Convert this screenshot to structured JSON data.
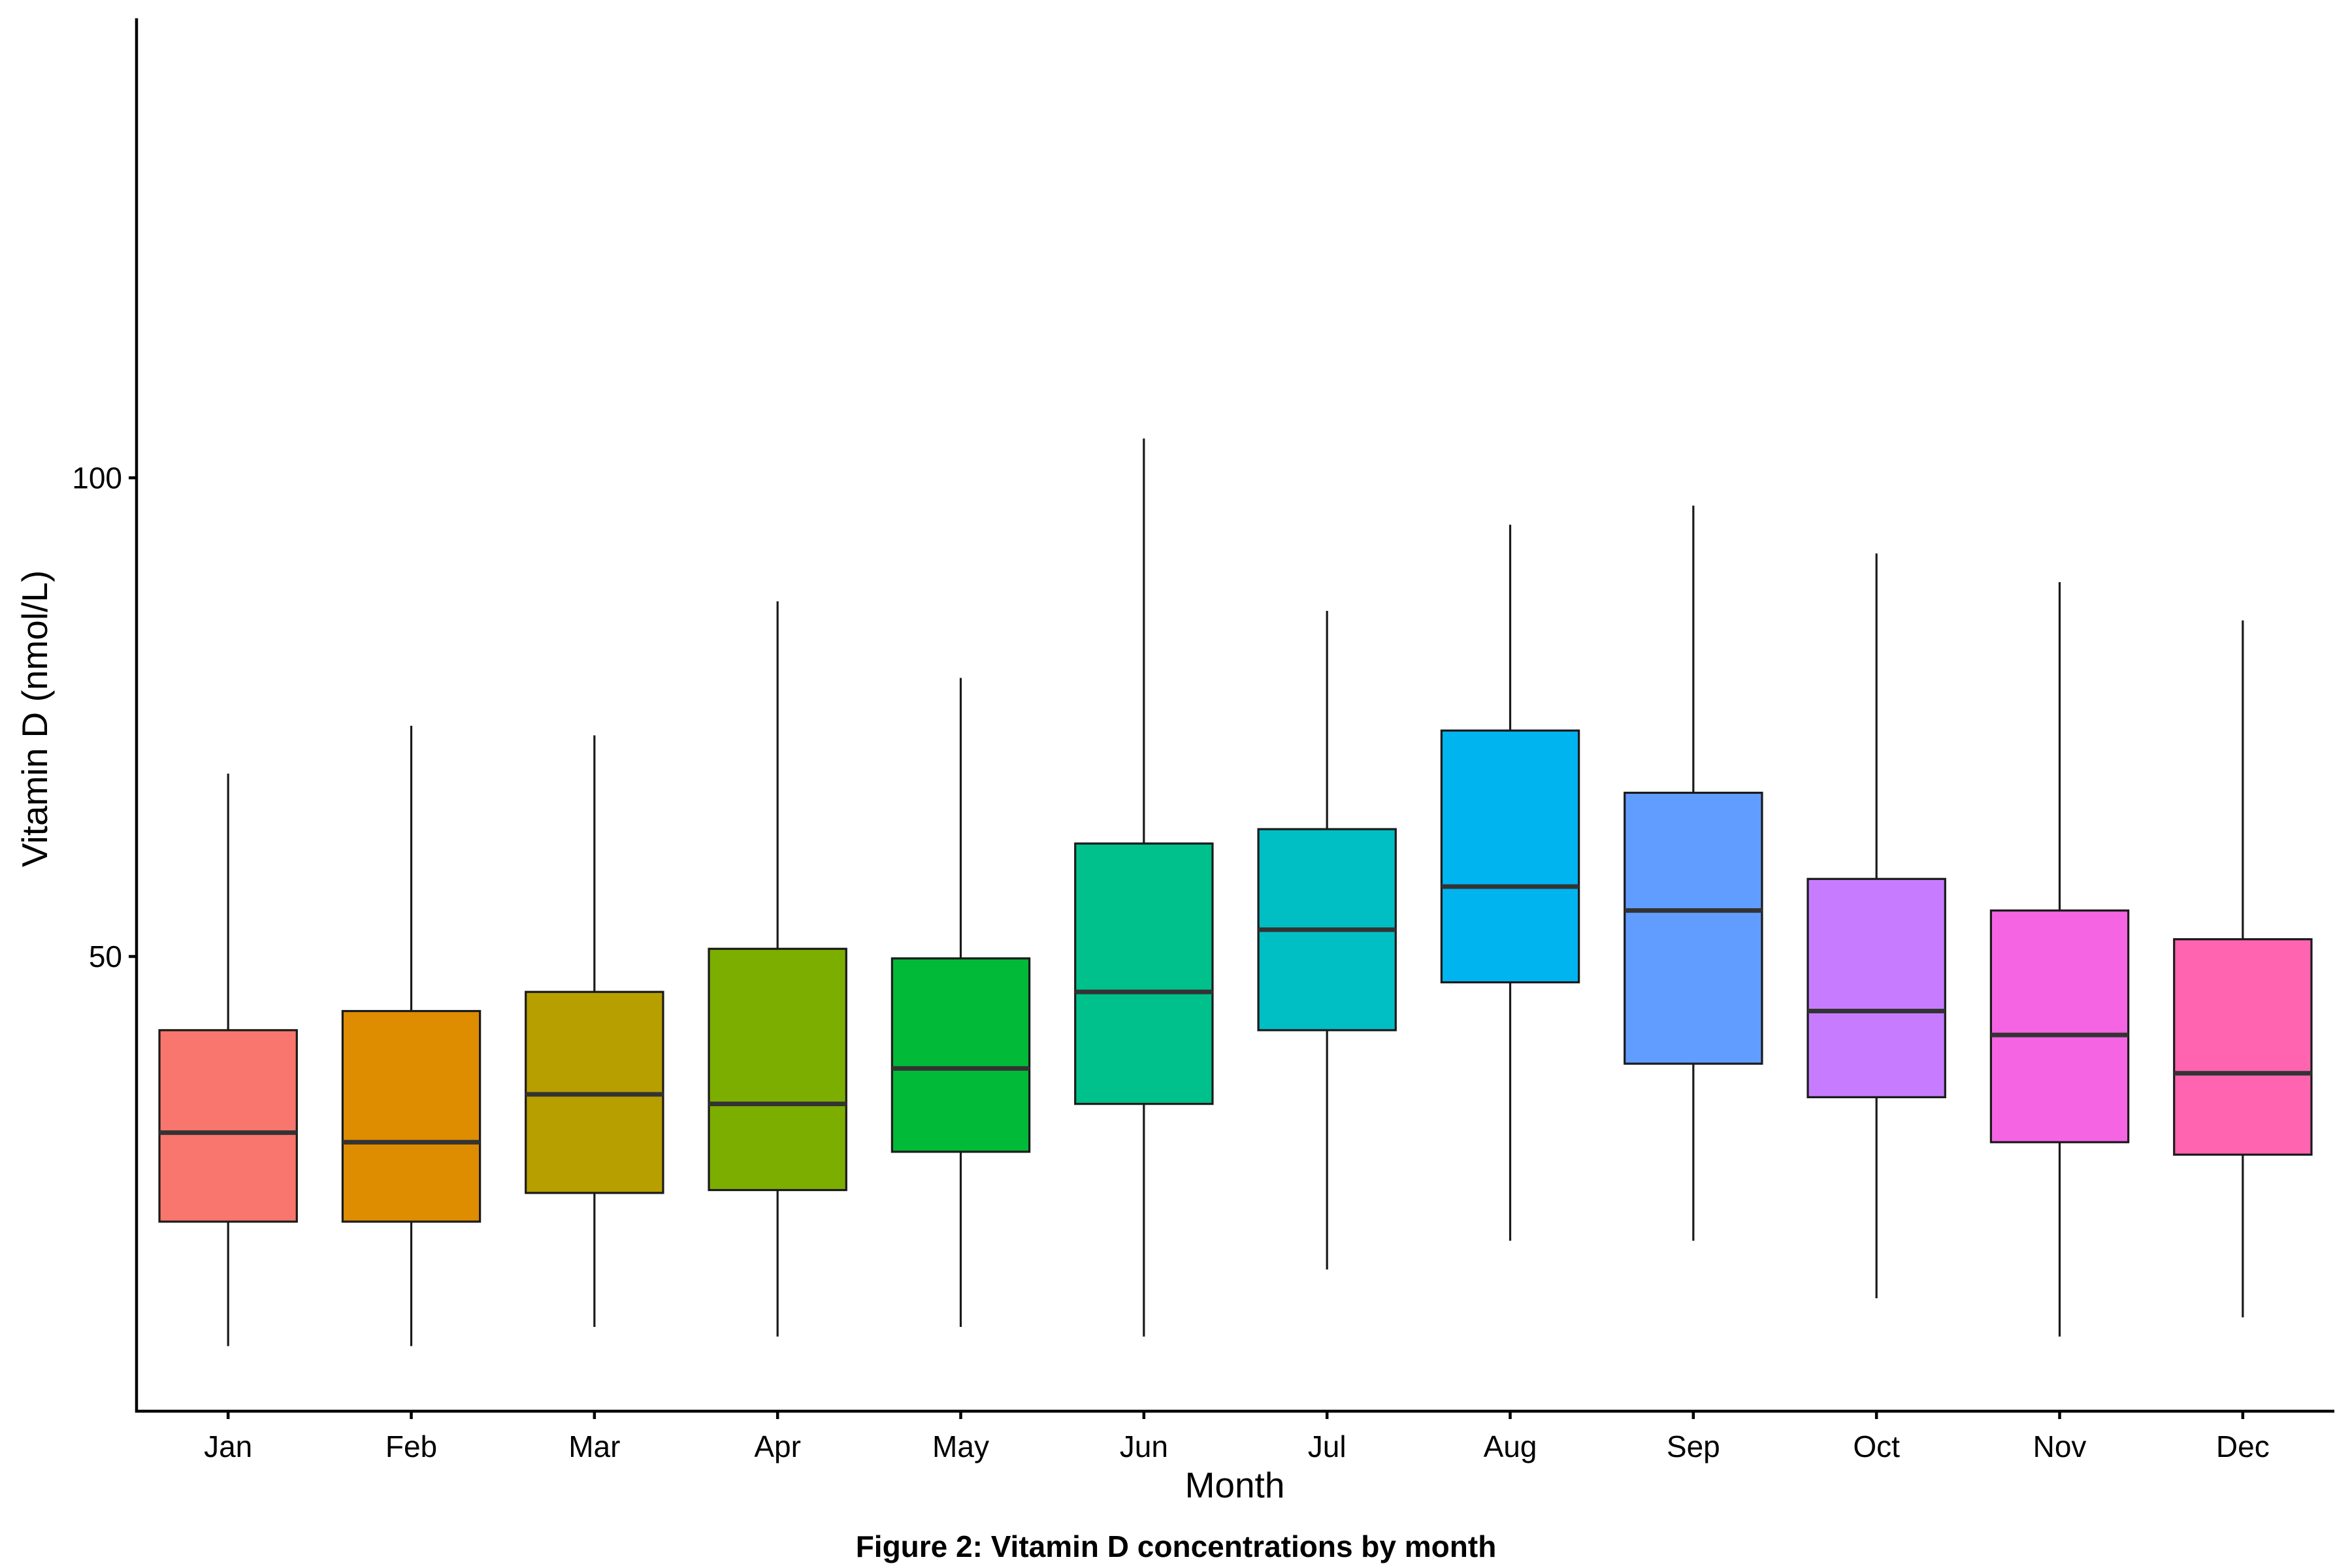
{
  "chart_data": {
    "type": "box",
    "caption": "Figure 2: Vitamin D concentrations by month",
    "xlabel": "Month",
    "ylabel": "Vitamin D (nmol/L)",
    "ylim": [
      2.5,
      148
    ],
    "yticks": [
      50,
      100
    ],
    "grid": false,
    "legend": "none",
    "categories": [
      "Jan",
      "Feb",
      "Mar",
      "Apr",
      "May",
      "Jun",
      "Jul",
      "Aug",
      "Sep",
      "Oct",
      "Nov",
      "Dec"
    ],
    "boxes": [
      {
        "month": "Jan",
        "whisker_low": 9.3,
        "q1": 22.3,
        "median": 31.6,
        "q3": 42.3,
        "whisker_high": 69.1,
        "color": "#F8766D"
      },
      {
        "month": "Feb",
        "whisker_low": 9.3,
        "q1": 22.3,
        "median": 30.6,
        "q3": 44.3,
        "whisker_high": 74.1,
        "color": "#DE8C00"
      },
      {
        "month": "Mar",
        "whisker_low": 11.3,
        "q1": 25.3,
        "median": 35.6,
        "q3": 46.3,
        "whisker_high": 73.1,
        "color": "#B79F00"
      },
      {
        "month": "Apr",
        "whisker_low": 10.3,
        "q1": 25.6,
        "median": 34.6,
        "q3": 50.8,
        "whisker_high": 87.1,
        "color": "#7CAE00"
      },
      {
        "month": "May",
        "whisker_low": 11.3,
        "q1": 29.6,
        "median": 38.3,
        "q3": 49.8,
        "whisker_high": 79.1,
        "color": "#00BA38"
      },
      {
        "month": "Jun",
        "whisker_low": 10.3,
        "q1": 34.6,
        "median": 46.3,
        "q3": 61.8,
        "whisker_high": 104.1,
        "color": "#00C08B"
      },
      {
        "month": "Jul",
        "whisker_low": 17.3,
        "q1": 42.3,
        "median": 52.8,
        "q3": 63.3,
        "whisker_high": 86.1,
        "color": "#00BFC4"
      },
      {
        "month": "Aug",
        "whisker_low": 20.3,
        "q1": 47.3,
        "median": 57.3,
        "q3": 73.6,
        "whisker_high": 95.1,
        "color": "#00B4F0"
      },
      {
        "month": "Sep",
        "whisker_low": 20.3,
        "q1": 38.8,
        "median": 54.8,
        "q3": 67.1,
        "whisker_high": 97.1,
        "color": "#619CFF"
      },
      {
        "month": "Oct",
        "whisker_low": 14.3,
        "q1": 35.3,
        "median": 44.3,
        "q3": 58.1,
        "whisker_high": 92.1,
        "color": "#C77CFF"
      },
      {
        "month": "Nov",
        "whisker_low": 10.3,
        "q1": 30.6,
        "median": 41.8,
        "q3": 54.8,
        "whisker_high": 89.1,
        "color": "#F564E3"
      },
      {
        "month": "Dec",
        "whisker_low": 12.3,
        "q1": 29.3,
        "median": 37.8,
        "q3": 51.8,
        "whisker_high": 85.1,
        "color": "#FF64B0"
      }
    ]
  }
}
